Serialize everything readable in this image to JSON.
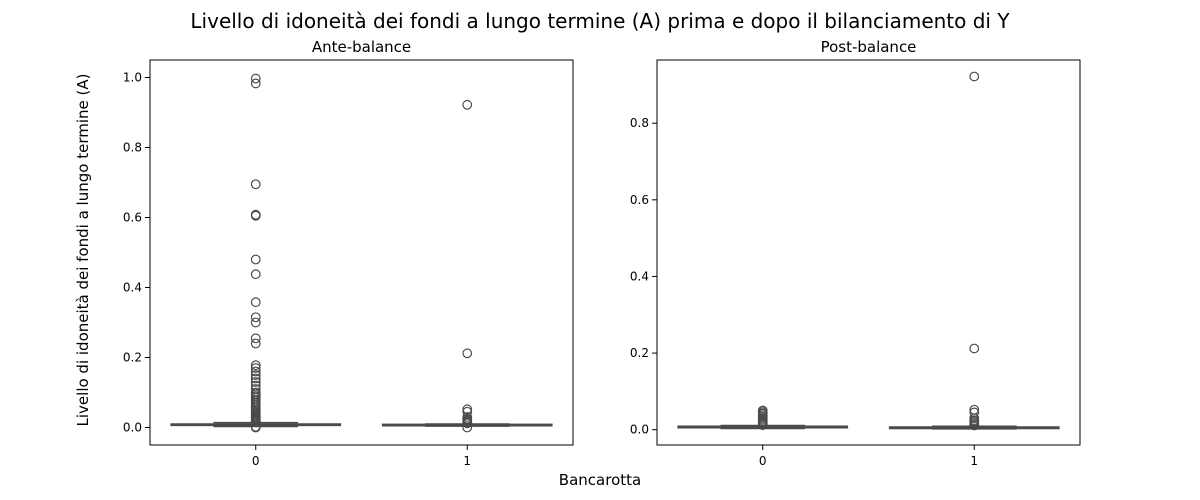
{
  "figure": {
    "suptitle": "Livello di idoneità dei fondi a lungo termine (A) prima e dopo il bilanciamento di Y",
    "ylabel": "Livello di idoneità dei fondi a lungo termine (A)",
    "xlabel": "Bancarotta"
  },
  "chart_data": [
    {
      "type": "box",
      "title": "Ante-balance",
      "categories": [
        "0",
        "1"
      ],
      "ylim": [
        -0.05,
        1.05
      ],
      "yticks": [
        0.0,
        0.2,
        0.4,
        0.6,
        0.8,
        1.0
      ],
      "grid": false,
      "box_color": "#4a4a4a",
      "boxes": [
        {
          "category": "0",
          "q1": 0.006,
          "median": 0.008,
          "q3": 0.01,
          "whisker_low": 0.003,
          "whisker_high": 0.014,
          "outliers": [
            0.0,
            0.002,
            0.016,
            0.018,
            0.02,
            0.022,
            0.025,
            0.028,
            0.03,
            0.033,
            0.036,
            0.04,
            0.043,
            0.047,
            0.05,
            0.055,
            0.06,
            0.065,
            0.07,
            0.075,
            0.08,
            0.085,
            0.09,
            0.095,
            0.1,
            0.11,
            0.12,
            0.13,
            0.14,
            0.15,
            0.16,
            0.17,
            0.178,
            0.24,
            0.255,
            0.3,
            0.315,
            0.358,
            0.438,
            0.48,
            0.605,
            0.608,
            0.695,
            0.983,
            0.997
          ]
        },
        {
          "category": "1",
          "q1": 0.005,
          "median": 0.007,
          "q3": 0.009,
          "whisker_low": 0.004,
          "whisker_high": 0.01,
          "outliers": [
            0.0,
            0.012,
            0.015,
            0.018,
            0.022,
            0.025,
            0.03,
            0.045,
            0.052,
            0.212,
            0.922
          ]
        }
      ]
    },
    {
      "type": "box",
      "title": "Post-balance",
      "categories": [
        "0",
        "1"
      ],
      "ylim": [
        -0.04,
        0.965
      ],
      "yticks": [
        0.0,
        0.2,
        0.4,
        0.6,
        0.8
      ],
      "grid": false,
      "box_color": "#4a4a4a",
      "boxes": [
        {
          "category": "0",
          "q1": 0.005,
          "median": 0.007,
          "q3": 0.009,
          "whisker_low": 0.003,
          "whisker_high": 0.011,
          "outliers": [
            0.012,
            0.015,
            0.018,
            0.022,
            0.026,
            0.03,
            0.034,
            0.038,
            0.042,
            0.046,
            0.05
          ]
        },
        {
          "category": "1",
          "q1": 0.003,
          "median": 0.005,
          "q3": 0.007,
          "whisker_low": 0.002,
          "whisker_high": 0.009,
          "outliers": [
            0.011,
            0.014,
            0.018,
            0.022,
            0.025,
            0.03,
            0.045,
            0.052,
            0.212,
            0.922
          ]
        }
      ]
    }
  ]
}
